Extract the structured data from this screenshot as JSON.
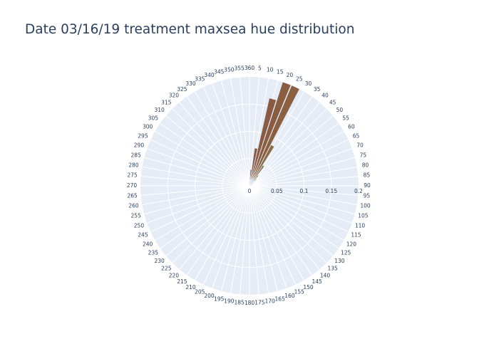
{
  "chart_data": {
    "type": "barpolar",
    "title": "Date 03/16/19 treatment maxsea hue distribution",
    "angular_axis": {
      "ticks": [
        "5",
        "10",
        "15",
        "20",
        "25",
        "30",
        "35",
        "40",
        "45",
        "50",
        "55",
        "60",
        "65",
        "70",
        "75",
        "80",
        "85",
        "90",
        "95",
        "100",
        "105",
        "110",
        "115",
        "120",
        "125",
        "130",
        "135",
        "140",
        "145",
        "150",
        "155",
        "160",
        "165",
        "170",
        "175",
        "180",
        "185",
        "190",
        "195",
        "200",
        "205",
        "210",
        "215",
        "220",
        "225",
        "230",
        "235",
        "240",
        "245",
        "250",
        "255",
        "260",
        "265",
        "270",
        "275",
        "280",
        "285",
        "290",
        "295",
        "300",
        "305",
        "310",
        "315",
        "320",
        "325",
        "330",
        "335",
        "340",
        "345",
        "350",
        "355",
        "360"
      ],
      "direction": "clockwise",
      "rotation": "north"
    },
    "radial_axis": {
      "range": [
        0,
        0.2
      ],
      "ticks": [
        {
          "value": 0,
          "label": "0"
        },
        {
          "value": 0.05,
          "label": "0.05"
        },
        {
          "value": 0.1,
          "label": "0.1"
        },
        {
          "value": 0.15,
          "label": "0.15"
        },
        {
          "value": 0.2,
          "label": "0.2"
        }
      ]
    },
    "bars": [
      {
        "theta": 5,
        "r": 0.03,
        "color": "#8a5a50"
      },
      {
        "theta": 10,
        "r": 0.07,
        "color": "#8a5a48"
      },
      {
        "theta": 15,
        "r": 0.165,
        "color": "#8a5a44"
      },
      {
        "theta": 20,
        "r": 0.2,
        "color": "#8a5c40"
      },
      {
        "theta": 25,
        "r": 0.2,
        "color": "#8a6040"
      },
      {
        "theta": 30,
        "r": 0.085,
        "color": "#8a6a44"
      },
      {
        "theta": 35,
        "r": 0.045,
        "color": "#8a7448"
      },
      {
        "theta": 40,
        "r": 0.025,
        "color": "#8a804e"
      },
      {
        "theta": 45,
        "r": 0.018,
        "color": "#8a8a55"
      },
      {
        "theta": 50,
        "r": 0.01,
        "color": "#808a5a"
      },
      {
        "theta": 55,
        "r": 0.008,
        "color": "#7a8a60"
      },
      {
        "theta": 60,
        "r": 0.006,
        "color": "#748a66"
      },
      {
        "theta": 65,
        "r": 0.004,
        "color": "#6e8a6c"
      },
      {
        "theta": 70,
        "r": 0.003,
        "color": "#688a72"
      }
    ]
  }
}
